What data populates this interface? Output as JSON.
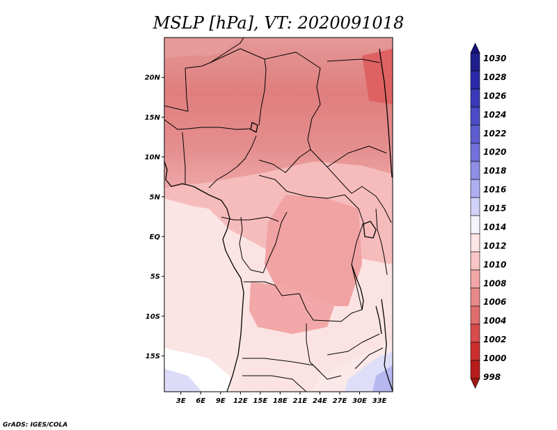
{
  "title": "MSLP [hPa], VT: 2020091018",
  "credit": "GrADS: IGES/COLA",
  "map": {
    "lat_labels": [
      {
        "label": "20N",
        "lat": 20
      },
      {
        "label": "15N",
        "lat": 15
      },
      {
        "label": "10N",
        "lat": 10
      },
      {
        "label": "5N",
        "lat": 5
      },
      {
        "label": "EQ",
        "lat": 0
      },
      {
        "label": "5S",
        "lat": -5
      },
      {
        "label": "10S",
        "lat": -10
      },
      {
        "label": "15S",
        "lat": -15
      }
    ],
    "lon_labels": [
      {
        "label": "3E",
        "lon": 3
      },
      {
        "label": "6E",
        "lon": 6
      },
      {
        "label": "9E",
        "lon": 9
      },
      {
        "label": "12E",
        "lon": 12
      },
      {
        "label": "15E",
        "lon": 15
      },
      {
        "label": "18E",
        "lon": 18
      },
      {
        "label": "21E",
        "lon": 21
      },
      {
        "label": "24E",
        "lon": 24
      },
      {
        "label": "27E",
        "lon": 27
      },
      {
        "label": "30E",
        "lon": 30
      },
      {
        "label": "33E",
        "lon": 33
      }
    ],
    "lon_range": [
      0.5,
      35
    ],
    "lat_range": [
      -19.5,
      25
    ]
  },
  "colorbar": {
    "labels": [
      "1030",
      "1028",
      "1026",
      "1024",
      "1022",
      "1020",
      "1018",
      "1016",
      "1015",
      "1014",
      "1012",
      "1010",
      "1008",
      "1006",
      "1004",
      "1002",
      "1000",
      "998"
    ],
    "colors": [
      "#1e1e8c",
      "#2a2aa8",
      "#3a3ab8",
      "#4b4bc6",
      "#5e5ed2",
      "#7272dc",
      "#8e8ee6",
      "#aeaef0",
      "#d2d2f8",
      "#f4f4fc",
      "#ffe4e4",
      "#f9c6c6",
      "#f2a6a6",
      "#e88a8a",
      "#e06e6e",
      "#d84c4c",
      "#cc2e2e",
      "#b81c1c"
    ],
    "top_color": "#141478",
    "bottom_color": "#a01818"
  }
}
